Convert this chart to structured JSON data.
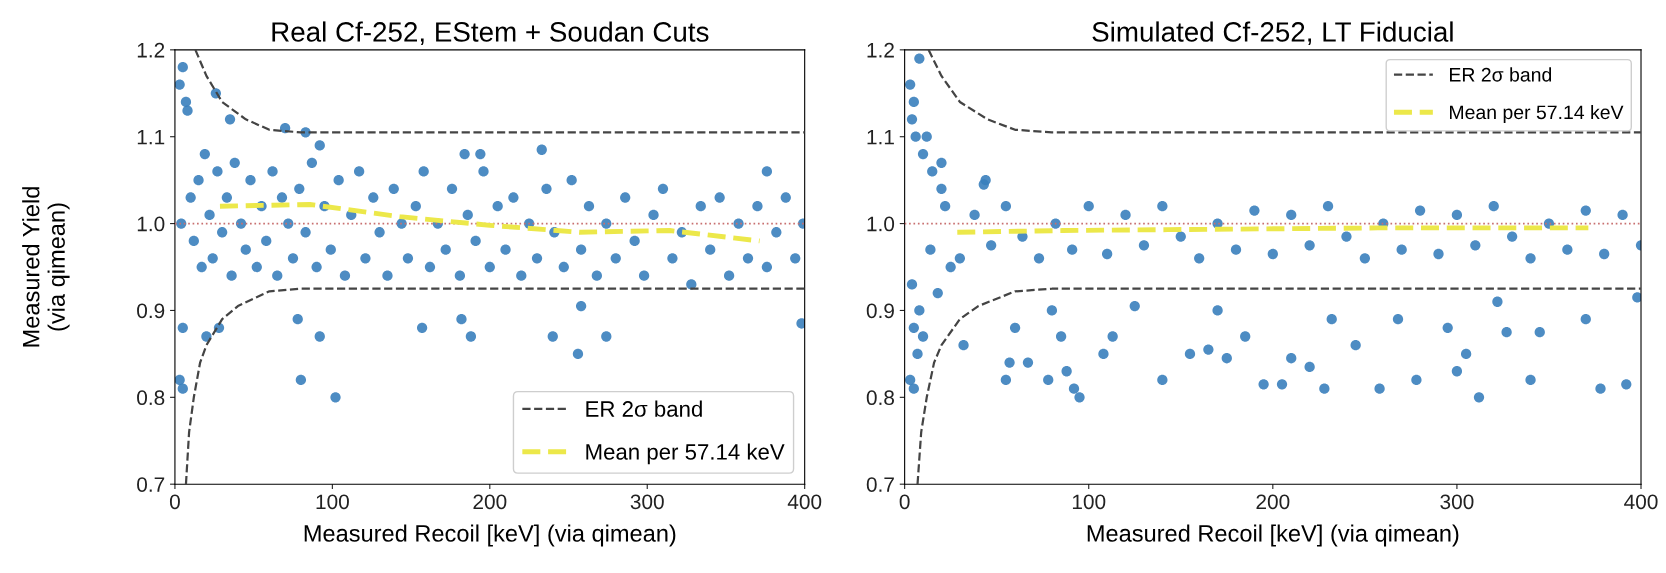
{
  "chart_data": [
    {
      "type": "scatter",
      "title": "Real Cf-252, EStem + Soudan Cuts",
      "xlabel": "Measured Recoil [keV] (via qimean)",
      "ylabel": "Measured Yield\n(via qimean)",
      "xlim": [
        0,
        400
      ],
      "ylim": [
        0.7,
        1.2
      ],
      "xticks": [
        0,
        100,
        200,
        300,
        400
      ],
      "yticks": [
        0.7,
        0.8,
        0.9,
        {
          "value": 1.0,
          "label": "1.0"
        },
        1.1,
        1.2
      ],
      "legend": "lower right",
      "grid": false,
      "ref_lines": [
        {
          "axis": "y",
          "value": 1.0,
          "color": "#c87070",
          "line_style": "dotted"
        }
      ],
      "series": [
        {
          "marker": "circle",
          "color": "#3a80bd",
          "x": [
            5,
            3,
            7,
            8,
            26,
            4,
            5,
            3,
            5,
            20,
            28,
            80,
            102,
            92,
            78,
            157,
            182,
            188,
            240,
            256,
            274,
            258,
            398,
            35,
            70,
            83,
            92,
            233,
            194,
            184,
            376,
            10,
            12,
            15,
            17,
            19,
            22,
            24,
            27,
            30,
            33,
            36,
            38,
            42,
            45,
            48,
            52,
            55,
            58,
            62,
            65,
            68,
            72,
            75,
            79,
            83,
            87,
            90,
            95,
            99,
            104,
            108,
            112,
            117,
            121,
            126,
            130,
            135,
            139,
            144,
            148,
            153,
            158,
            162,
            167,
            172,
            176,
            181,
            186,
            191,
            196,
            200,
            205,
            210,
            215,
            220,
            225,
            230,
            236,
            241,
            247,
            252,
            258,
            263,
            268,
            274,
            280,
            286,
            292,
            298,
            304,
            310,
            316,
            322,
            328,
            334,
            340,
            346,
            352,
            358,
            364,
            370,
            376,
            382,
            388,
            394,
            399
          ],
          "values": [
            1.18,
            1.16,
            1.14,
            1.13,
            1.15,
            1.0,
            0.88,
            0.82,
            0.81,
            0.87,
            0.88,
            0.82,
            0.8,
            0.87,
            0.89,
            0.88,
            0.89,
            0.87,
            0.87,
            0.85,
            0.87,
            0.905,
            0.885,
            1.12,
            1.11,
            1.105,
            1.09,
            1.085,
            1.08,
            1.08,
            1.06,
            1.03,
            0.98,
            1.05,
            0.95,
            1.08,
            1.01,
            0.96,
            1.06,
            0.99,
            1.03,
            0.94,
            1.07,
            1.0,
            0.97,
            1.05,
            0.95,
            1.02,
            0.98,
            1.06,
            0.94,
            1.03,
            1.0,
            0.96,
            1.04,
            0.99,
            1.07,
            0.95,
            1.02,
            0.97,
            1.05,
            0.94,
            1.01,
            1.06,
            0.96,
            1.03,
            0.99,
            0.94,
            1.04,
            1.0,
            0.96,
            1.02,
            1.06,
            0.95,
            1.0,
            0.97,
            1.04,
            0.94,
            1.01,
            0.98,
            1.06,
            0.95,
            1.02,
            0.97,
            1.03,
            0.94,
            1.0,
            0.96,
            1.04,
            0.99,
            0.95,
            1.05,
            0.97,
            1.02,
            0.94,
            1.0,
            0.96,
            1.03,
            0.98,
            0.94,
            1.01,
            1.04,
            0.96,
            0.99,
            0.93,
            1.02,
            0.97,
            1.03,
            0.94,
            1.0,
            0.96,
            1.02,
            0.95,
            0.99,
            1.03,
            0.96,
            1.0
          ]
        },
        {
          "type": "line",
          "name": "ER 2σ band",
          "color": "#444444",
          "line_style": "dashed",
          "x": [
            13,
            20,
            30,
            45,
            60,
            80,
            120,
            200,
            300,
            400
          ],
          "values": [
            1.2,
            1.17,
            1.14,
            1.12,
            1.108,
            1.105,
            1.105,
            1.105,
            1.105,
            1.105
          ]
        },
        {
          "type": "line",
          "color": "#444444",
          "line_style": "dashed",
          "x": [
            7,
            9,
            12,
            16,
            20,
            30,
            40,
            60,
            80,
            120,
            200,
            300,
            400
          ],
          "values": [
            0.7,
            0.76,
            0.8,
            0.84,
            0.86,
            0.89,
            0.905,
            0.922,
            0.925,
            0.925,
            0.925,
            0.925,
            0.925
          ]
        },
        {
          "type": "line",
          "name": "Mean per 57.14 keV",
          "color": "#ece84a",
          "line_style": "dashed",
          "x": [
            28.6,
            85.7,
            142.9,
            200,
            257.1,
            314.3,
            371.4
          ],
          "values": [
            1.02,
            1.022,
            1.008,
            0.998,
            0.99,
            0.992,
            0.98
          ]
        }
      ]
    },
    {
      "type": "scatter",
      "title": "Simulated Cf-252, LT Fiducial",
      "xlabel": "Measured Recoil [keV] (via qimean)",
      "xlim": [
        0,
        400
      ],
      "ylim": [
        0.7,
        1.2
      ],
      "xticks": [
        0,
        100,
        200,
        300,
        400
      ],
      "yticks": [
        0.7,
        0.8,
        0.9,
        {
          "value": 1.0,
          "label": "1.0"
        },
        1.1,
        1.2
      ],
      "legend": "upper right",
      "grid": false,
      "ref_lines": [
        {
          "axis": "y",
          "value": 1.0,
          "color": "#c87070",
          "line_style": "dotted"
        }
      ],
      "series": [
        {
          "marker": "circle",
          "color": "#3a80bd",
          "x": [
            3,
            5,
            4,
            8,
            6,
            10,
            12,
            4,
            5,
            7,
            3,
            5,
            8,
            10,
            15,
            18,
            20,
            25,
            32,
            55,
            57,
            60,
            67,
            78,
            80,
            85,
            88,
            92,
            95,
            108,
            113,
            125,
            140,
            155,
            165,
            170,
            175,
            185,
            195,
            205,
            210,
            220,
            228,
            232,
            245,
            258,
            268,
            278,
            295,
            300,
            305,
            312,
            322,
            327,
            340,
            345,
            370,
            378,
            392,
            398,
            44,
            43,
            20,
            14,
            22,
            30,
            38,
            47,
            55,
            64,
            73,
            82,
            91,
            100,
            110,
            120,
            130,
            140,
            150,
            160,
            170,
            180,
            190,
            200,
            210,
            220,
            230,
            240,
            250,
            260,
            270,
            280,
            290,
            300,
            310,
            320,
            330,
            340,
            350,
            360,
            370,
            380,
            390,
            400
          ],
          "values": [
            1.16,
            1.14,
            1.12,
            1.19,
            1.1,
            1.08,
            1.1,
            0.93,
            0.88,
            0.85,
            0.82,
            0.81,
            0.9,
            0.87,
            1.06,
            0.92,
            1.04,
            0.95,
            0.86,
            0.82,
            0.84,
            0.88,
            0.84,
            0.82,
            0.9,
            0.87,
            0.83,
            0.81,
            0.8,
            0.85,
            0.87,
            0.905,
            0.82,
            0.85,
            0.855,
            0.9,
            0.845,
            0.87,
            0.815,
            0.815,
            0.845,
            0.835,
            0.81,
            0.89,
            0.86,
            0.81,
            0.89,
            0.82,
            0.88,
            0.83,
            0.85,
            0.8,
            0.91,
            0.875,
            0.82,
            0.875,
            0.89,
            0.81,
            0.815,
            0.915,
            1.05,
            1.045,
            1.07,
            0.97,
            1.02,
            0.96,
            1.01,
            0.975,
            1.02,
            0.985,
            0.96,
            1.0,
            0.97,
            1.02,
            0.965,
            1.01,
            0.975,
            1.02,
            0.985,
            0.96,
            1.0,
            0.97,
            1.015,
            0.965,
            1.01,
            0.975,
            1.02,
            0.985,
            0.96,
            1.0,
            0.97,
            1.015,
            0.965,
            1.01,
            0.975,
            1.02,
            0.985,
            0.96,
            1.0,
            0.97,
            1.015,
            0.965,
            1.01,
            0.975
          ]
        },
        {
          "type": "line",
          "name": "ER 2σ band",
          "color": "#444444",
          "line_style": "dashed",
          "x": [
            13,
            20,
            30,
            45,
            60,
            80,
            120,
            200,
            300,
            400
          ],
          "values": [
            1.2,
            1.17,
            1.14,
            1.12,
            1.108,
            1.105,
            1.105,
            1.105,
            1.105,
            1.105
          ]
        },
        {
          "type": "line",
          "color": "#444444",
          "line_style": "dashed",
          "x": [
            7,
            9,
            12,
            16,
            20,
            30,
            40,
            60,
            80,
            120,
            200,
            300,
            400
          ],
          "values": [
            0.7,
            0.76,
            0.8,
            0.84,
            0.86,
            0.89,
            0.905,
            0.922,
            0.925,
            0.925,
            0.925,
            0.925,
            0.925
          ]
        },
        {
          "type": "line",
          "name": "Mean per 57.14 keV",
          "color": "#ece84a",
          "line_style": "dashed",
          "x": [
            28.6,
            85.7,
            142.9,
            200,
            257.1,
            314.3,
            371.4
          ],
          "values": [
            0.99,
            0.992,
            0.993,
            0.994,
            0.995,
            0.995,
            0.995
          ]
        }
      ]
    }
  ]
}
